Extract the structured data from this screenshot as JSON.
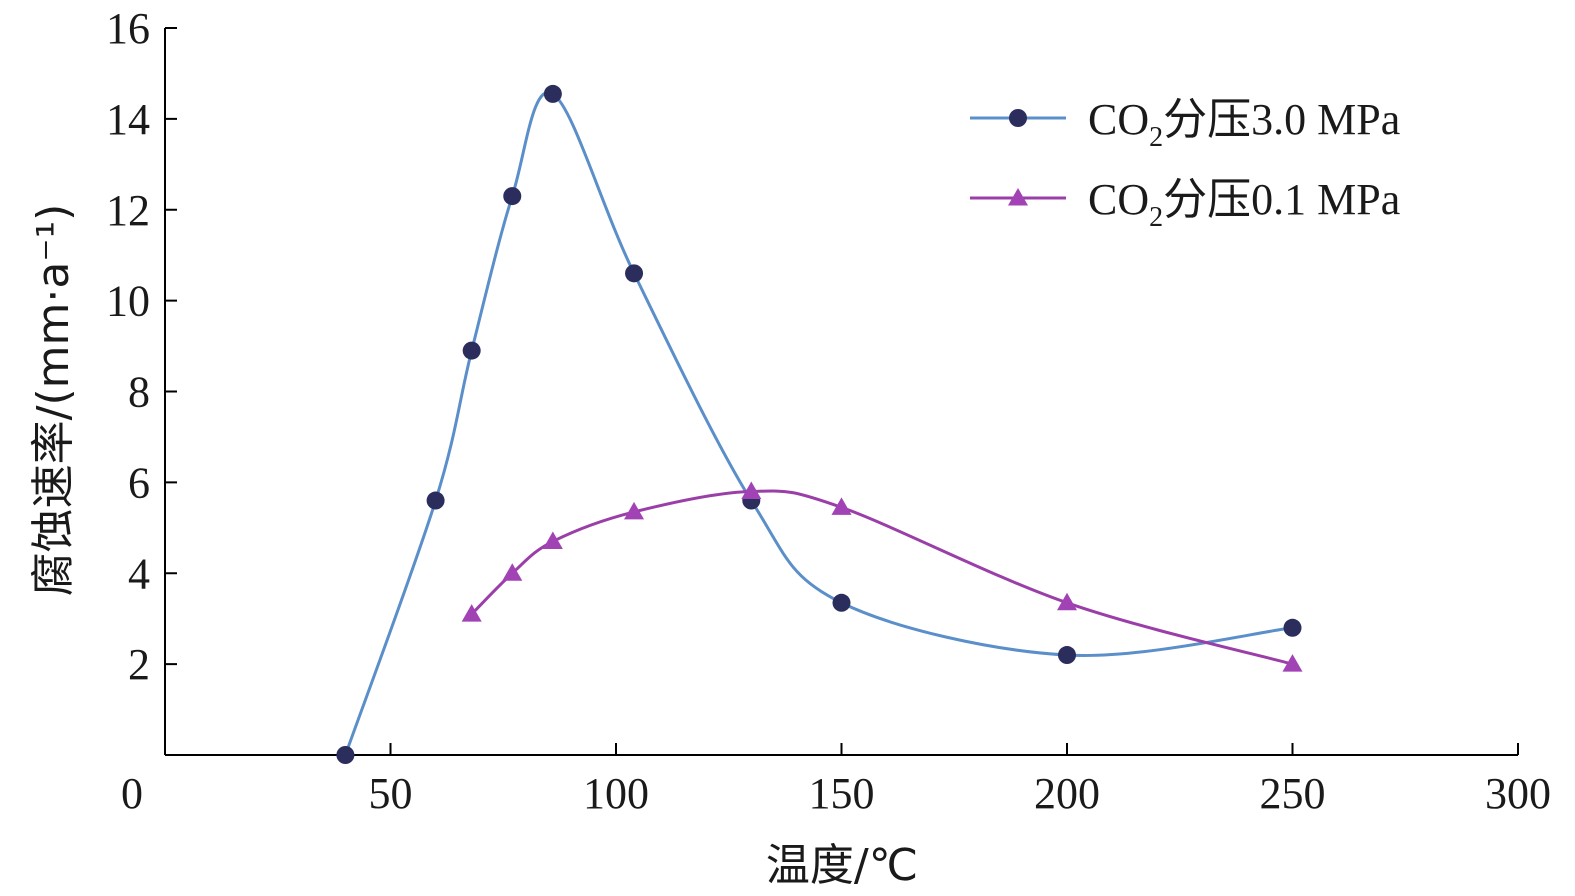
{
  "chart_data": {
    "type": "line",
    "title": "",
    "xlabel": "温度/℃",
    "ylabel": "腐蚀速率/(mm·a⁻¹)",
    "xlim": [
      0,
      300
    ],
    "ylim": [
      0,
      16
    ],
    "x_ticks": [
      0,
      50,
      100,
      150,
      200,
      250,
      300
    ],
    "y_ticks": [
      2,
      4,
      6,
      8,
      10,
      12,
      14,
      16
    ],
    "grid": false,
    "legend_position": "top-right",
    "series": [
      {
        "name": "CO₂分压3.0 MPa",
        "name_main": "CO",
        "name_sub": "2",
        "name_rest": "分压3.0 MPa",
        "color": "#5b8fc9",
        "marker_color": "#2b2d5c",
        "marker": "circle",
        "x": [
          40,
          60,
          68,
          77,
          86,
          104,
          130,
          150,
          200,
          250
        ],
        "y": [
          0,
          5.6,
          8.9,
          12.3,
          14.55,
          10.6,
          5.6,
          3.35,
          2.2,
          2.8
        ]
      },
      {
        "name": "CO₂分压0.1 MPa",
        "name_main": "CO",
        "name_sub": "2",
        "name_rest": "分压0.1 MPa",
        "color": "#9b3fa8",
        "marker_color": "#a142b5",
        "marker": "triangle",
        "x": [
          68,
          77,
          86,
          104,
          130,
          150,
          200,
          250
        ],
        "y": [
          3.1,
          4.0,
          4.7,
          5.35,
          5.8,
          5.45,
          3.35,
          2.0
        ]
      }
    ]
  }
}
